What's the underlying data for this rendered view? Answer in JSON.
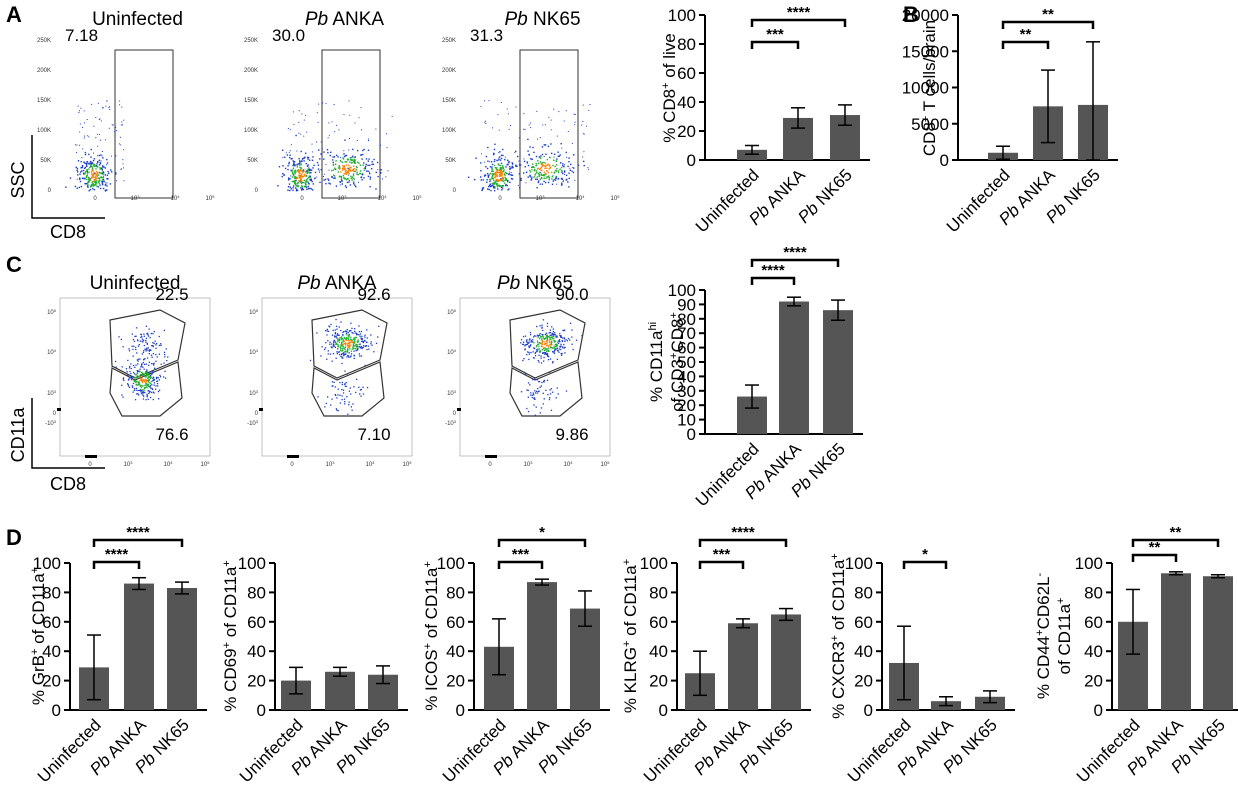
{
  "panel_labels": [
    "A",
    "B",
    "C",
    "D"
  ],
  "flow_a": {
    "x_axis_label": "CD8",
    "y_axis_label": "SSC",
    "y_ticks": [
      "250K",
      "200K",
      "150K",
      "100K",
      "50K",
      "0"
    ],
    "x_ticks": [
      "0",
      "10",
      "10",
      "10"
    ],
    "x_tick_exps": [
      "",
      "3",
      "4",
      "5"
    ],
    "plots": [
      {
        "title_italic": "",
        "title": "Uninfected",
        "gate_value": "7.18"
      },
      {
        "title_italic": "Pb",
        "title": " ANKA",
        "gate_value": "30.0"
      },
      {
        "title_italic": "Pb",
        "title": " NK65",
        "gate_value": "31.3"
      }
    ]
  },
  "flow_c": {
    "x_axis_label": "CD8",
    "y_axis_label": "CD11a",
    "y_ticks": [
      "10",
      "10",
      "10",
      "0",
      "-10"
    ],
    "y_tick_exps": [
      "5",
      "4",
      "3",
      "",
      "3"
    ],
    "x_ticks": [
      "0",
      "10",
      "10",
      "10"
    ],
    "x_tick_exps": [
      "",
      "3",
      "4",
      "5"
    ],
    "plots": [
      {
        "title_italic": "",
        "title": "Uninfected",
        "upper": "22.5",
        "lower": "76.6"
      },
      {
        "title_italic": "Pb",
        "title": " ANKA",
        "upper": "92.6",
        "lower": "7.10"
      },
      {
        "title_italic": "Pb",
        "title": " NK65",
        "upper": "90.0",
        "lower": "9.86"
      }
    ]
  },
  "chart_data": [
    {
      "id": "A-bar",
      "type": "bar",
      "categories": [
        "Uninfected",
        "Pb ANKA",
        "Pb NK65"
      ],
      "values": [
        7,
        29,
        31
      ],
      "errors": [
        3,
        7,
        7
      ],
      "ylabel_parts": [
        [
          "% CD8",
          ""
        ],
        [
          "+",
          "sup"
        ],
        [
          " of live",
          ""
        ]
      ],
      "ylim": [
        0,
        100
      ],
      "yticks": [
        0,
        20,
        40,
        60,
        80,
        100
      ],
      "sig": [
        {
          "from": 0,
          "to": 1,
          "label": "***"
        },
        {
          "from": 0,
          "to": 2,
          "label": "****"
        }
      ]
    },
    {
      "id": "B-bar",
      "type": "bar",
      "categories": [
        "Uninfected",
        "Pb ANKA",
        "Pb NK65"
      ],
      "values": [
        1000,
        7400,
        7600
      ],
      "errors": [
        900,
        5000,
        8700
      ],
      "ylabel_parts": [
        [
          "CD8",
          ""
        ],
        [
          "+",
          "sup"
        ],
        [
          " T cells/brain",
          ""
        ]
      ],
      "ylim": [
        0,
        20000
      ],
      "yticks": [
        0,
        5000,
        10000,
        15000,
        20000
      ],
      "sig": [
        {
          "from": 0,
          "to": 1,
          "label": "**"
        },
        {
          "from": 0,
          "to": 2,
          "label": "**"
        }
      ]
    },
    {
      "id": "C-bar",
      "type": "bar",
      "categories": [
        "Uninfected",
        "Pb ANKA",
        "Pb NK65"
      ],
      "values": [
        26,
        92,
        86
      ],
      "errors": [
        8,
        3,
        7
      ],
      "ylabel_parts": [
        [
          "% CD11a",
          ""
        ],
        [
          "hi",
          "sup"
        ]
      ],
      "ylabel2_parts": [
        [
          "of CD3",
          ""
        ],
        [
          "+",
          "sup"
        ],
        [
          "CD8",
          ""
        ],
        [
          "+",
          "sup"
        ]
      ],
      "ylim": [
        0,
        100
      ],
      "yticks": [
        0,
        10,
        20,
        30,
        40,
        50,
        60,
        70,
        80,
        90,
        100
      ],
      "sig": [
        {
          "from": 0,
          "to": 1,
          "label": "****"
        },
        {
          "from": 0,
          "to": 2,
          "label": "****"
        }
      ]
    },
    {
      "id": "D1",
      "type": "bar",
      "categories": [
        "Uninfected",
        "Pb ANKA",
        "Pb NK65"
      ],
      "values": [
        29,
        86,
        83
      ],
      "errors": [
        22,
        4,
        4
      ],
      "ylabel_parts": [
        [
          "% GrB",
          ""
        ],
        [
          "+",
          "sup"
        ],
        [
          " of CD11a",
          ""
        ],
        [
          "+",
          "sup"
        ]
      ],
      "ylim": [
        0,
        100
      ],
      "yticks": [
        0,
        20,
        40,
        60,
        80,
        100
      ],
      "sig": [
        {
          "from": 0,
          "to": 1,
          "label": "****"
        },
        {
          "from": 0,
          "to": 2,
          "label": "****"
        }
      ]
    },
    {
      "id": "D2",
      "type": "bar",
      "categories": [
        "Uninfected",
        "Pb ANKA",
        "Pb NK65"
      ],
      "values": [
        20,
        26,
        24
      ],
      "errors": [
        9,
        3,
        6
      ],
      "ylabel_parts": [
        [
          "% CD69",
          ""
        ],
        [
          "+",
          "sup"
        ],
        [
          " of CD11a",
          ""
        ],
        [
          "+",
          "sup"
        ]
      ],
      "ylim": [
        0,
        100
      ],
      "yticks": [
        0,
        20,
        40,
        60,
        80,
        100
      ],
      "sig": []
    },
    {
      "id": "D3",
      "type": "bar",
      "categories": [
        "Uninfected",
        "Pb ANKA",
        "Pb NK65"
      ],
      "values": [
        43,
        87,
        69
      ],
      "errors": [
        19,
        2,
        12
      ],
      "ylabel_parts": [
        [
          "% ICOS",
          ""
        ],
        [
          "+",
          "sup"
        ],
        [
          " of CD11a",
          ""
        ],
        [
          "+",
          "sup"
        ]
      ],
      "ylim": [
        0,
        100
      ],
      "yticks": [
        0,
        20,
        40,
        60,
        80,
        100
      ],
      "sig": [
        {
          "from": 0,
          "to": 1,
          "label": "***"
        },
        {
          "from": 0,
          "to": 2,
          "label": "*"
        }
      ]
    },
    {
      "id": "D4",
      "type": "bar",
      "categories": [
        "Uninfected",
        "Pb ANKA",
        "Pb NK65"
      ],
      "values": [
        25,
        59,
        65
      ],
      "errors": [
        15,
        3,
        4
      ],
      "ylabel_parts": [
        [
          "% KLRG",
          ""
        ],
        [
          "+",
          "sup"
        ],
        [
          " of CD11a",
          ""
        ],
        [
          "+",
          "sup"
        ]
      ],
      "ylim": [
        0,
        100
      ],
      "yticks": [
        0,
        20,
        40,
        60,
        80,
        100
      ],
      "sig": [
        {
          "from": 0,
          "to": 1,
          "label": "***"
        },
        {
          "from": 0,
          "to": 2,
          "label": "****"
        }
      ]
    },
    {
      "id": "D5",
      "type": "bar",
      "categories": [
        "Uninfected",
        "Pb ANKA",
        "Pb NK65"
      ],
      "values": [
        32,
        6,
        9
      ],
      "errors": [
        25,
        3,
        4
      ],
      "ylabel_parts": [
        [
          "% CXCR3",
          ""
        ],
        [
          "+",
          "sup"
        ],
        [
          " of CD11a",
          ""
        ],
        [
          "+",
          "sup"
        ]
      ],
      "ylim": [
        0,
        100
      ],
      "yticks": [
        0,
        20,
        40,
        60,
        80,
        100
      ],
      "sig": [
        {
          "from": 0,
          "to": 1,
          "label": "*"
        }
      ]
    },
    {
      "id": "D6",
      "type": "bar",
      "categories": [
        "Uninfected",
        "Pb ANKA",
        "Pb NK65"
      ],
      "values": [
        60,
        93,
        91
      ],
      "errors": [
        22,
        1,
        1
      ],
      "ylabel_parts": [
        [
          "% CD44",
          ""
        ],
        [
          "+",
          "sup"
        ],
        [
          "CD62L",
          ""
        ],
        [
          "-",
          "sup"
        ]
      ],
      "ylabel2_parts": [
        [
          "of CD11a",
          ""
        ],
        [
          "+",
          "sup"
        ]
      ],
      "ylim": [
        0,
        100
      ],
      "yticks": [
        0,
        20,
        40,
        60,
        80,
        100
      ],
      "sig": [
        {
          "from": 0,
          "to": 1,
          "label": "**"
        },
        {
          "from": 0,
          "to": 2,
          "label": "**"
        }
      ]
    }
  ],
  "colors": {
    "bar": "#555555",
    "axis": "#000000",
    "scatter_hi": "#ff7f00",
    "scatter_mid": "#1fae2f",
    "scatter_lo": "#1a3cc8"
  }
}
